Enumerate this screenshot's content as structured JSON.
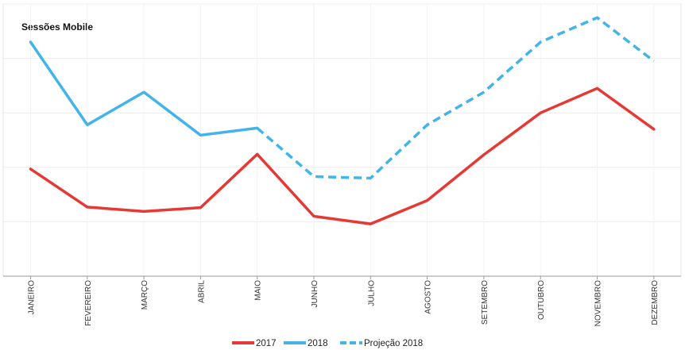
{
  "chart_data": {
    "type": "line",
    "title": "Sessões Mobile",
    "categories": [
      "JANEIRO",
      "FEVEREIRO",
      "MARÇO",
      "ABRIL",
      "MAIO",
      "JUNHO",
      "JULHO",
      "AGOSTO",
      "SETEMBRO",
      "OUTUBRO",
      "NOVEMBRO",
      "DEZEMBRO"
    ],
    "series": [
      {
        "name": "2017",
        "color": "#e53935",
        "dashed": false,
        "values": [
          1.97,
          1.27,
          1.19,
          1.26,
          2.24,
          1.1,
          0.96,
          1.39,
          2.23,
          3.0,
          3.45,
          2.7
        ]
      },
      {
        "name": "2018",
        "color": "#42b4ea",
        "dashed": false,
        "values": [
          4.3,
          2.78,
          3.38,
          2.59,
          2.72,
          null,
          null,
          null,
          null,
          null,
          null,
          null
        ]
      },
      {
        "name": "Projeção 2018",
        "color": "#42b4ea",
        "dashed": true,
        "values": [
          null,
          null,
          null,
          null,
          2.72,
          1.83,
          1.8,
          2.78,
          3.38,
          4.3,
          4.75,
          3.95
        ]
      }
    ],
    "ylim": [
      0,
      5
    ],
    "grid": true,
    "legend_position": "bottom-center"
  }
}
